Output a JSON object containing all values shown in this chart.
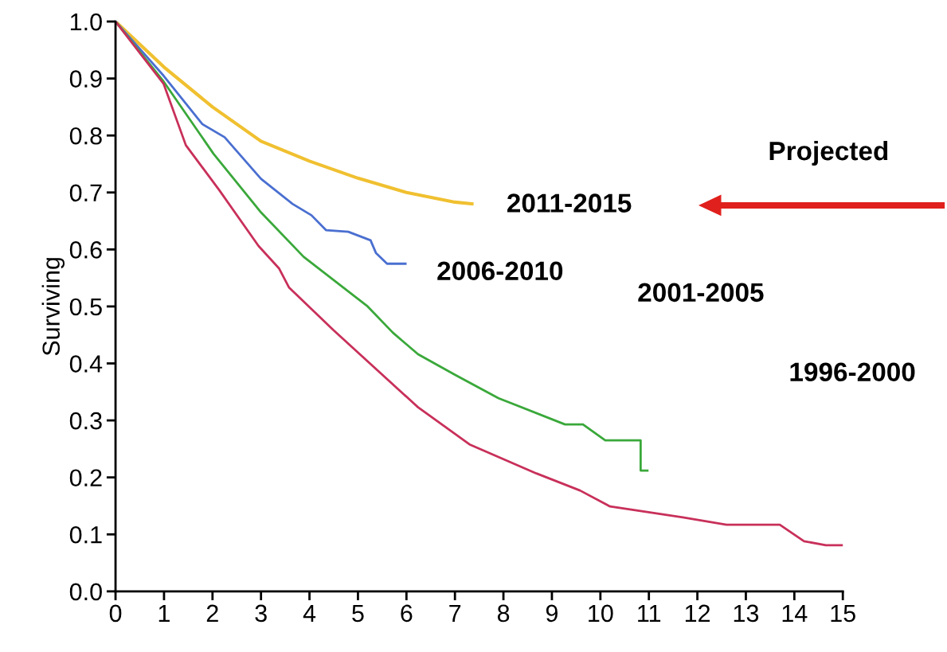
{
  "chart_data": {
    "type": "line",
    "ylabel": "Surviving",
    "xlim": [
      0,
      15
    ],
    "xticks": [
      0,
      1,
      2,
      3,
      4,
      5,
      6,
      7,
      8,
      9,
      10,
      11,
      12,
      13,
      14,
      15
    ],
    "ylim": [
      0,
      1.0
    ],
    "yticks": [
      {
        "value": 0,
        "label": "0.0"
      },
      0.1,
      0.2,
      0.3,
      0.4,
      0.5,
      0.6,
      0.7,
      0.8,
      0.9,
      {
        "value": 1,
        "label": "1.0"
      }
    ],
    "grid": false,
    "legend": false,
    "marker": "none",
    "line_style": "solid",
    "annotations": [
      "2011-2015",
      "2006-2010",
      "2001-2005",
      "1996-2000",
      "Projected"
    ],
    "series": [
      {
        "color": "#f0c030",
        "x": [
          0,
          1,
          2,
          3,
          4,
          5,
          6,
          7,
          7.35
        ],
        "values": [
          1.0,
          0.92,
          0.85,
          0.79,
          0.755,
          0.725,
          0.7,
          0.683,
          0.68
        ]
      },
      {
        "color": "#4a6fd0",
        "x": [
          0,
          0.99,
          1.79,
          2.25,
          3.0,
          3.65,
          4.04,
          4.34,
          4.8,
          5.26,
          5.37,
          5.6,
          5.98
        ],
        "values": [
          1.0,
          0.905,
          0.82,
          0.797,
          0.724,
          0.68,
          0.66,
          0.634,
          0.631,
          0.616,
          0.594,
          0.575,
          0.575
        ]
      },
      {
        "color": "#3aa83a",
        "x": [
          0,
          0.99,
          2.02,
          3.0,
          3.88,
          5.2,
          5.72,
          6.24,
          7.0,
          7.9,
          9.27,
          9.64,
          10.1,
          10.83,
          10.83,
          10.97
        ],
        "values": [
          1.0,
          0.895,
          0.768,
          0.665,
          0.587,
          0.5,
          0.454,
          0.416,
          0.38,
          0.339,
          0.293,
          0.293,
          0.265,
          0.265,
          0.212,
          0.212
        ]
      },
      {
        "color": "#c8305a",
        "x": [
          0,
          0.99,
          1.45,
          2.14,
          2.95,
          3.37,
          3.58,
          4.5,
          6.24,
          7.3,
          8.68,
          9.58,
          10.2,
          11.7,
          12.6,
          13.7,
          14.2,
          14.65,
          15.0
        ],
        "values": [
          1.0,
          0.891,
          0.783,
          0.704,
          0.606,
          0.567,
          0.533,
          0.458,
          0.323,
          0.258,
          0.207,
          0.177,
          0.149,
          0.13,
          0.117,
          0.117,
          0.088,
          0.081,
          0.081
        ]
      }
    ]
  }
}
